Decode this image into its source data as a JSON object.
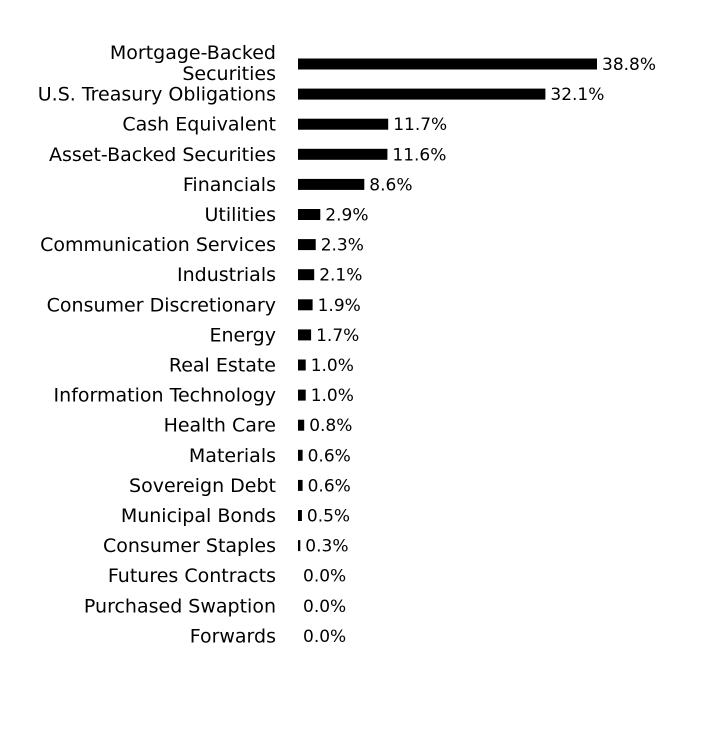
{
  "chart_data": {
    "type": "bar",
    "orientation": "horizontal",
    "categories": [
      [
        "Mortgage-Backed",
        "Securities"
      ],
      [
        "U.S. Treasury Obligations"
      ],
      [
        "Cash Equivalent"
      ],
      [
        "Asset-Backed Securities"
      ],
      [
        "Financials"
      ],
      [
        "Utilities"
      ],
      [
        "Communication Services"
      ],
      [
        "Industrials"
      ],
      [
        "Consumer Discretionary"
      ],
      [
        "Energy"
      ],
      [
        "Real Estate"
      ],
      [
        "Information Technology"
      ],
      [
        "Health Care"
      ],
      [
        "Materials"
      ],
      [
        "Sovereign Debt"
      ],
      [
        "Municipal Bonds"
      ],
      [
        "Consumer Staples"
      ],
      [
        "Futures Contracts"
      ],
      [
        "Purchased Swaption"
      ],
      [
        "Forwards"
      ]
    ],
    "values": [
      38.8,
      32.1,
      11.7,
      11.6,
      8.6,
      2.9,
      2.3,
      2.1,
      1.9,
      1.7,
      1.0,
      1.0,
      0.8,
      0.6,
      0.6,
      0.5,
      0.3,
      0.0,
      0.0,
      0.0
    ],
    "value_labels": [
      "38.8%",
      "32.1%",
      "11.7%",
      "11.6%",
      "8.6%",
      "2.9%",
      "2.3%",
      "2.1%",
      "1.9%",
      "1.7%",
      "1.0%",
      "1.0%",
      "0.8%",
      "0.6%",
      "0.6%",
      "0.5%",
      "0.3%",
      "0.0%",
      "0.0%",
      "0.0%"
    ],
    "xlim": [
      0,
      38.8
    ],
    "grid": false,
    "bar_color": "#000000"
  }
}
